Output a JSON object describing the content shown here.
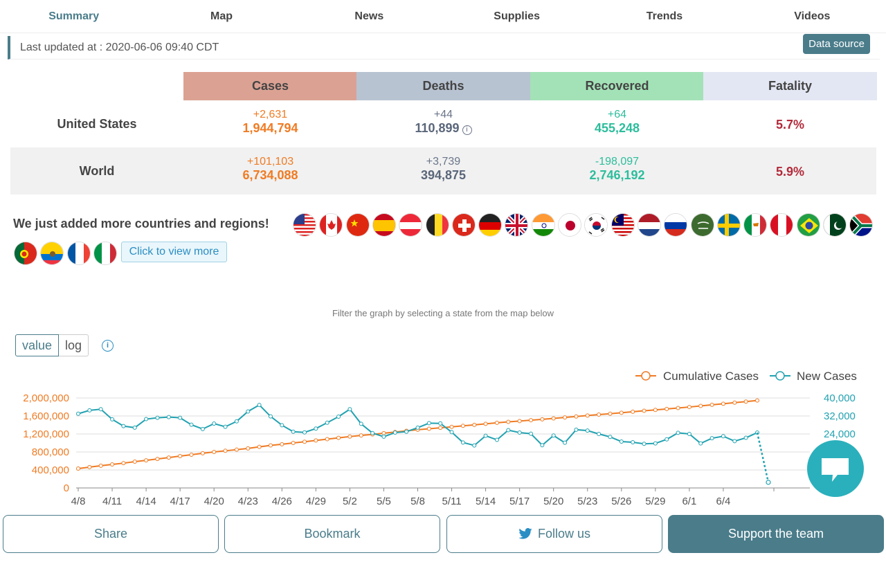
{
  "nav": {
    "tabs": [
      "Summary",
      "Map",
      "News",
      "Supplies",
      "Trends",
      "Videos"
    ]
  },
  "updated": {
    "label": "Last updated at : 2020-06-06 09:40 CDT",
    "data_source": "Data source"
  },
  "stats": {
    "headers": [
      "Cases",
      "Deaths",
      "Recovered",
      "Fatality"
    ],
    "header_colors": [
      "#dba293",
      "#b8c3d2",
      "#a3e2b7",
      "#e3e7f3"
    ],
    "rows": [
      {
        "name": "United States",
        "cases_delta": "+2,631",
        "cases": "1,944,794",
        "deaths_delta": "+44",
        "deaths": "110,899",
        "recovered_delta": "+64",
        "recovered": "455,248",
        "fatality": "5.7%"
      },
      {
        "name": "World",
        "cases_delta": "+101,103",
        "cases": "6,734,088",
        "deaths_delta": "+3,739",
        "deaths": "394,875",
        "recovered_delta": "-198,097",
        "recovered": "2,746,192",
        "fatality": "5.9%"
      }
    ]
  },
  "added": {
    "text": "We just added more countries and regions!",
    "view_more": "Click to view more"
  },
  "flags": [
    "us-flag-icon",
    "canada-flag-icon",
    "china-flag-icon",
    "spain-flag-icon",
    "austria-flag-icon",
    "belgium-flag-icon",
    "switzerland-flag-icon",
    "germany-flag-icon",
    "uk-flag-icon",
    "india-flag-icon",
    "japan-flag-icon",
    "korea-flag-icon",
    "malaysia-flag-icon",
    "netherlands-flag-icon",
    "russia-flag-icon",
    "saudi-flag-icon",
    "sweden-flag-icon",
    "cyprus-flag-icon",
    "peru-flag-icon",
    "brazil-flag-icon",
    "pakistan-flag-icon",
    "south-africa-flag-icon",
    "portugal-flag-icon",
    "ecuador-flag-icon",
    "france-flag-icon",
    "italy-flag-icon"
  ],
  "filter": "Filter the graph by selecting a state from the map below",
  "toggle": {
    "value": "value",
    "log": "log"
  },
  "chart_data": {
    "type": "line",
    "legend": [
      "Cumulative Cases",
      "New Cases"
    ],
    "legend_position": "top-right",
    "colors": {
      "cumulative": "#f07b23",
      "new": "#22a2b1"
    },
    "x_tick_labels": [
      "4/8",
      "4/11",
      "4/14",
      "4/17",
      "4/20",
      "4/23",
      "4/26",
      "4/29",
      "5/2",
      "5/5",
      "5/8",
      "5/11",
      "5/14",
      "5/17",
      "5/20",
      "5/23",
      "5/26",
      "5/29",
      "6/1",
      "6/4"
    ],
    "y_left_ticks": [
      "0",
      "400,000",
      "800,000",
      "1,200,000",
      "1,600,000",
      "2,000,000"
    ],
    "y_right_ticks": [
      "40,000",
      "32,000",
      "24,000"
    ],
    "ylim_left": [
      0,
      2000000
    ],
    "ylim_right": [
      0,
      40000
    ],
    "cumulative": [
      430000,
      463000,
      495000,
      523000,
      551000,
      584000,
      614000,
      644000,
      675000,
      708000,
      739000,
      771000,
      800000,
      826000,
      851000,
      879000,
      913000,
      946000,
      971000,
      1000000,
      1027000,
      1055000,
      1084000,
      1113000,
      1143000,
      1168000,
      1191000,
      1217000,
      1242000,
      1270000,
      1295000,
      1316000,
      1337000,
      1358000,
      1380000,
      1402000,
      1425000,
      1448000,
      1469000,
      1487000,
      1506000,
      1525000,
      1546000,
      1567000,
      1588000,
      1609000,
      1630000,
      1650000,
      1672000,
      1694000,
      1715000,
      1734000,
      1755000,
      1777000,
      1799000,
      1823000,
      1848000,
      1872000,
      1897000,
      1920000,
      1944794
    ],
    "new_cases": [
      33000,
      34500,
      35000,
      30500,
      27500,
      26800,
      30600,
      31200,
      31500,
      31200,
      28100,
      26200,
      28600,
      27200,
      29600,
      34000,
      36900,
      31800,
      27900,
      25000,
      24700,
      26400,
      29000,
      31700,
      35000,
      28500,
      24400,
      22800,
      24600,
      25000,
      26800,
      28800,
      28700,
      24800,
      20200,
      18900,
      23200,
      21400,
      25700,
      24600,
      24100,
      19000,
      23300,
      20100,
      25900,
      25500,
      24000,
      22700,
      20600,
      20300,
      19600,
      19800,
      21600,
      24500,
      24000,
      19800,
      22100,
      23000,
      20800,
      22300,
      24600
    ],
    "new_cases_last_projected": 2500
  },
  "buttons": {
    "share": "Share",
    "bookmark": "Bookmark",
    "follow": "Follow us",
    "support": "Support the team"
  }
}
